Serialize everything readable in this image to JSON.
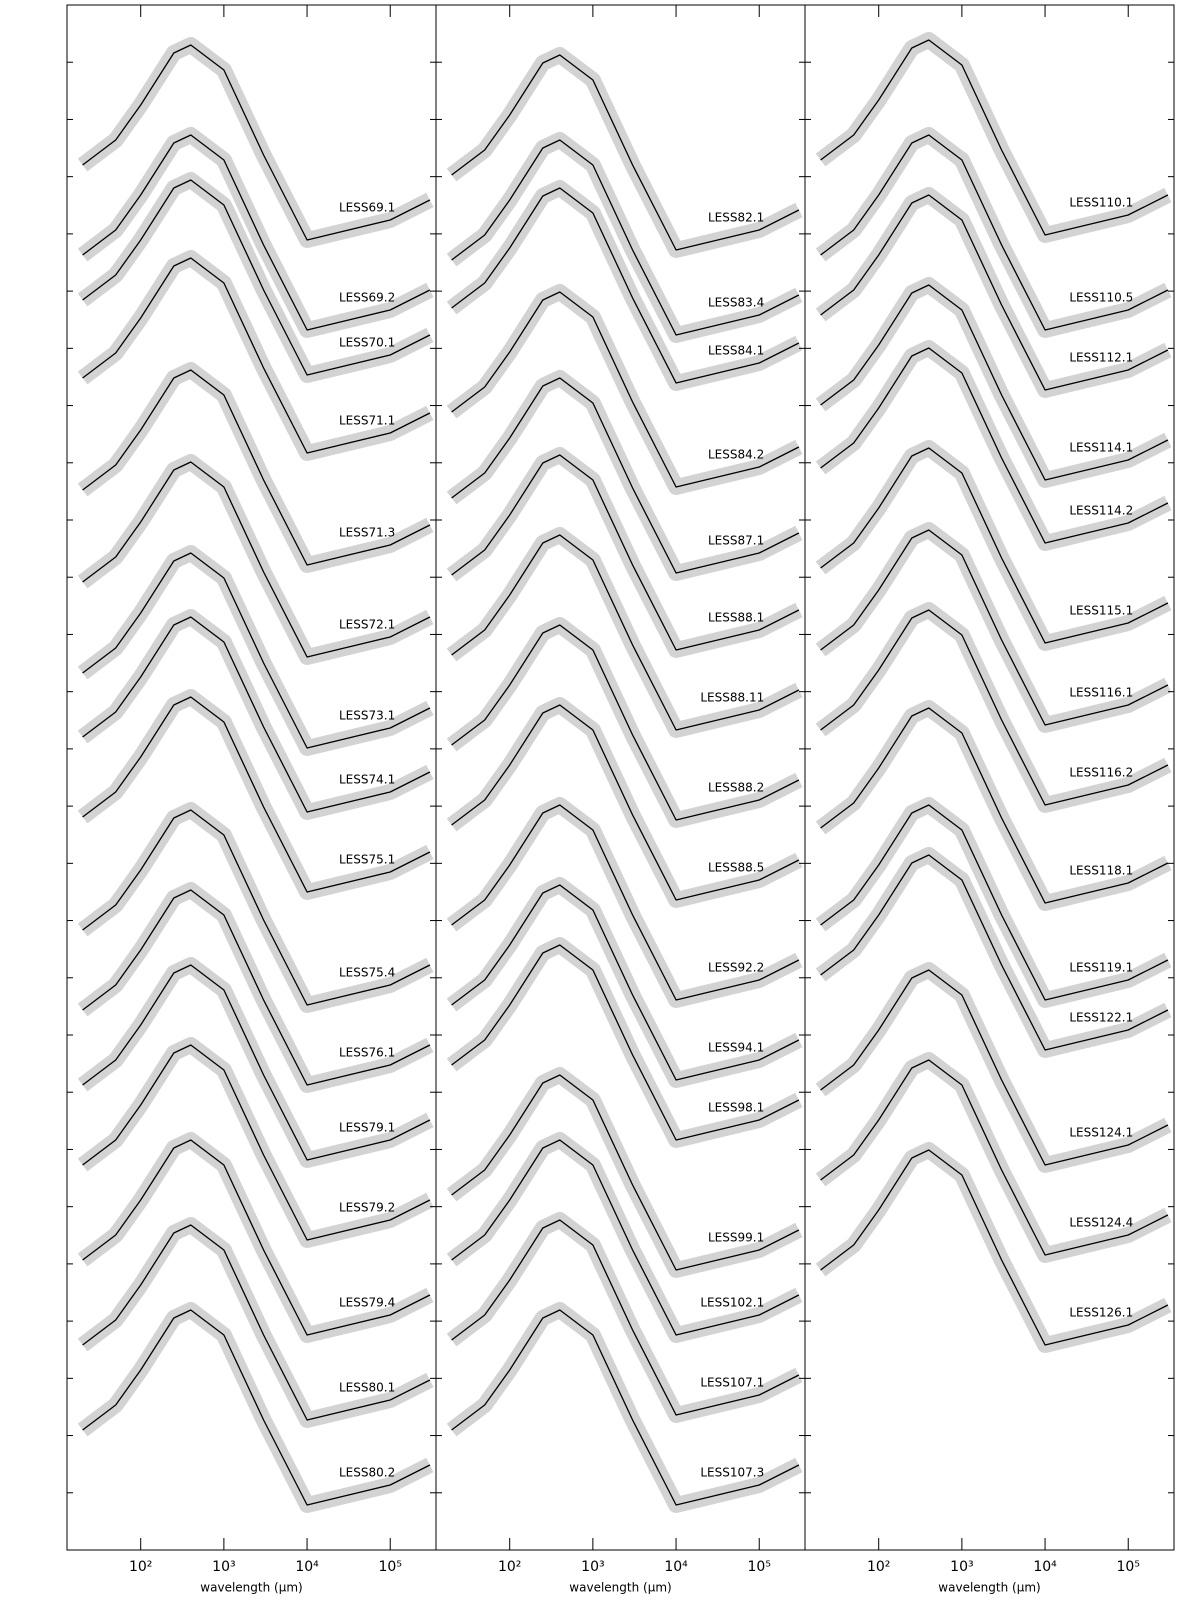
{
  "chart_data": [
    {
      "type": "line",
      "xlabel": "wavelength (μm)",
      "log_x": true,
      "color": "#000000",
      "band_color": "#d3d3d3",
      "x": [
        20,
        50,
        100,
        250,
        400,
        1000,
        3000,
        10000,
        100000,
        300000
      ],
      "xlim": [
        13,
        355000
      ],
      "ylim": [
        25,
        1570
      ],
      "xticks": [
        {
          "value": 100,
          "label": "10²"
        },
        {
          "value": 1000,
          "label": "10³"
        },
        {
          "value": 10000,
          "label": "10⁴"
        },
        {
          "value": 100000,
          "label": "10⁵"
        }
      ],
      "series": [
        {
          "name": "LESS69.1",
          "values": [
            1410,
            1435,
            1470,
            1522,
            1530,
            1505,
            1420,
            1335,
            1355,
            1375
          ]
        },
        {
          "name": "LESS69.2",
          "values": [
            1320,
            1345,
            1380,
            1432,
            1440,
            1415,
            1330,
            1245,
            1265,
            1285
          ]
        },
        {
          "name": "LESS70.1",
          "values": [
            1275,
            1300,
            1335,
            1387,
            1395,
            1370,
            1285,
            1200,
            1220,
            1240
          ]
        },
        {
          "name": "LESS71.1",
          "values": [
            1197,
            1222,
            1257,
            1309,
            1317,
            1292,
            1207,
            1122,
            1142,
            1162
          ]
        },
        {
          "name": "LESS71.3",
          "values": [
            1085,
            1110,
            1145,
            1197,
            1205,
            1180,
            1095,
            1010,
            1030,
            1050
          ]
        },
        {
          "name": "LESS72.1",
          "values": [
            993,
            1018,
            1053,
            1105,
            1113,
            1088,
            1003,
            918,
            938,
            958
          ]
        },
        {
          "name": "LESS73.1",
          "values": [
            902,
            927,
            962,
            1014,
            1022,
            997,
            912,
            827,
            847,
            867
          ]
        },
        {
          "name": "LESS74.1",
          "values": [
            838,
            863,
            898,
            950,
            958,
            933,
            848,
            763,
            783,
            803
          ]
        },
        {
          "name": "LESS75.1",
          "values": [
            758,
            783,
            818,
            870,
            878,
            853,
            768,
            683,
            703,
            723
          ]
        },
        {
          "name": "LESS75.4",
          "values": [
            645,
            670,
            705,
            757,
            765,
            740,
            655,
            570,
            590,
            610
          ]
        },
        {
          "name": "LESS76.1",
          "values": [
            565,
            590,
            625,
            677,
            685,
            660,
            575,
            490,
            510,
            530
          ]
        },
        {
          "name": "LESS79.1",
          "values": [
            490,
            515,
            550,
            602,
            610,
            585,
            500,
            415,
            435,
            455
          ]
        },
        {
          "name": "LESS79.2",
          "values": [
            410,
            435,
            470,
            522,
            530,
            505,
            420,
            335,
            355,
            375
          ]
        },
        {
          "name": "LESS79.4",
          "values": [
            315,
            340,
            375,
            427,
            435,
            410,
            325,
            240,
            260,
            280
          ]
        },
        {
          "name": "LESS80.1",
          "values": [
            230,
            255,
            290,
            342,
            350,
            325,
            240,
            155,
            175,
            195
          ]
        },
        {
          "name": "LESS80.2",
          "values": [
            145,
            170,
            205,
            257,
            265,
            240,
            155,
            70,
            90,
            110
          ]
        }
      ]
    },
    {
      "type": "line",
      "xlabel": "wavelength (μm)",
      "log_x": true,
      "color": "#000000",
      "band_color": "#d3d3d3",
      "x": [
        20,
        50,
        100,
        250,
        400,
        1000,
        3000,
        10000,
        100000,
        300000
      ],
      "xlim": [
        13,
        355000
      ],
      "ylim": [
        25,
        1570
      ],
      "xticks": [
        {
          "value": 100,
          "label": "10²"
        },
        {
          "value": 1000,
          "label": "10³"
        },
        {
          "value": 10000,
          "label": "10⁴"
        },
        {
          "value": 100000,
          "label": "10⁵"
        }
      ],
      "series": [
        {
          "name": "LESS82.1",
          "values": [
            1400,
            1425,
            1460,
            1512,
            1520,
            1495,
            1410,
            1325,
            1345,
            1365
          ]
        },
        {
          "name": "LESS83.4",
          "values": [
            1315,
            1340,
            1375,
            1427,
            1435,
            1410,
            1325,
            1240,
            1260,
            1280
          ]
        },
        {
          "name": "LESS84.1",
          "values": [
            1267,
            1292,
            1327,
            1379,
            1387,
            1362,
            1277,
            1192,
            1212,
            1232
          ]
        },
        {
          "name": "LESS84.2",
          "values": [
            1163,
            1188,
            1223,
            1275,
            1283,
            1258,
            1173,
            1088,
            1108,
            1128
          ]
        },
        {
          "name": "LESS87.1",
          "values": [
            1077,
            1102,
            1137,
            1189,
            1197,
            1172,
            1087,
            1002,
            1022,
            1042
          ]
        },
        {
          "name": "LESS88.1",
          "values": [
            1000,
            1025,
            1060,
            1112,
            1120,
            1095,
            1010,
            925,
            945,
            965
          ]
        },
        {
          "name": "LESS88.11",
          "values": [
            920,
            945,
            980,
            1032,
            1040,
            1015,
            930,
            845,
            865,
            885
          ]
        },
        {
          "name": "LESS88.2",
          "values": [
            830,
            855,
            890,
            942,
            950,
            925,
            840,
            755,
            775,
            795
          ]
        },
        {
          "name": "LESS88.5",
          "values": [
            750,
            775,
            810,
            862,
            870,
            845,
            760,
            675,
            695,
            715
          ]
        },
        {
          "name": "LESS92.2",
          "values": [
            650,
            675,
            710,
            762,
            770,
            745,
            660,
            575,
            595,
            615
          ]
        },
        {
          "name": "LESS94.1",
          "values": [
            570,
            595,
            630,
            682,
            690,
            665,
            580,
            495,
            515,
            535
          ]
        },
        {
          "name": "LESS98.1",
          "values": [
            510,
            535,
            570,
            622,
            630,
            605,
            520,
            435,
            455,
            475
          ]
        },
        {
          "name": "LESS99.1",
          "values": [
            380,
            405,
            440,
            492,
            500,
            475,
            390,
            305,
            325,
            345
          ]
        },
        {
          "name": "LESS102.1",
          "values": [
            315,
            340,
            375,
            427,
            435,
            410,
            325,
            240,
            260,
            280
          ]
        },
        {
          "name": "LESS107.1",
          "values": [
            235,
            260,
            295,
            347,
            355,
            330,
            245,
            160,
            180,
            200
          ]
        },
        {
          "name": "LESS107.3",
          "values": [
            145,
            170,
            205,
            257,
            265,
            240,
            155,
            70,
            90,
            110
          ]
        }
      ]
    },
    {
      "type": "line",
      "xlabel": "wavelength (μm)",
      "log_x": true,
      "color": "#000000",
      "band_color": "#d3d3d3",
      "x": [
        20,
        50,
        100,
        250,
        400,
        1000,
        3000,
        10000,
        100000,
        300000
      ],
      "xlim": [
        13,
        355000
      ],
      "ylim": [
        25,
        1570
      ],
      "xticks": [
        {
          "value": 100,
          "label": "10²"
        },
        {
          "value": 1000,
          "label": "10³"
        },
        {
          "value": 10000,
          "label": "10⁴"
        },
        {
          "value": 100000,
          "label": "10⁵"
        }
      ],
      "series": [
        {
          "name": "LESS110.1",
          "values": [
            1415,
            1440,
            1475,
            1527,
            1535,
            1510,
            1425,
            1340,
            1360,
            1380
          ]
        },
        {
          "name": "LESS110.5",
          "values": [
            1320,
            1345,
            1380,
            1432,
            1440,
            1415,
            1330,
            1245,
            1265,
            1285
          ]
        },
        {
          "name": "LESS112.1",
          "values": [
            1260,
            1285,
            1320,
            1372,
            1380,
            1355,
            1270,
            1185,
            1205,
            1225
          ]
        },
        {
          "name": "LESS114.1",
          "values": [
            1170,
            1195,
            1230,
            1282,
            1290,
            1265,
            1180,
            1095,
            1115,
            1135
          ]
        },
        {
          "name": "LESS114.2",
          "values": [
            1107,
            1132,
            1167,
            1219,
            1227,
            1202,
            1117,
            1032,
            1052,
            1072
          ]
        },
        {
          "name": "LESS115.1",
          "values": [
            1007,
            1032,
            1067,
            1119,
            1127,
            1102,
            1017,
            932,
            952,
            972
          ]
        },
        {
          "name": "LESS116.1",
          "values": [
            925,
            950,
            985,
            1037,
            1045,
            1020,
            935,
            850,
            870,
            890
          ]
        },
        {
          "name": "LESS116.2",
          "values": [
            845,
            870,
            905,
            957,
            965,
            940,
            855,
            770,
            790,
            810
          ]
        },
        {
          "name": "LESS118.1",
          "values": [
            747,
            772,
            807,
            859,
            867,
            842,
            757,
            672,
            692,
            712
          ]
        },
        {
          "name": "LESS119.1",
          "values": [
            650,
            675,
            710,
            762,
            770,
            745,
            660,
            575,
            595,
            615
          ]
        },
        {
          "name": "LESS122.1",
          "values": [
            600,
            625,
            660,
            712,
            720,
            695,
            610,
            525,
            545,
            565
          ]
        },
        {
          "name": "LESS124.1",
          "values": [
            485,
            510,
            545,
            597,
            605,
            580,
            495,
            410,
            430,
            450
          ]
        },
        {
          "name": "LESS124.4",
          "values": [
            395,
            420,
            455,
            507,
            515,
            490,
            405,
            320,
            340,
            360
          ]
        },
        {
          "name": "LESS126.1",
          "values": [
            305,
            330,
            365,
            417,
            425,
            400,
            315,
            230,
            250,
            270
          ]
        }
      ]
    }
  ]
}
